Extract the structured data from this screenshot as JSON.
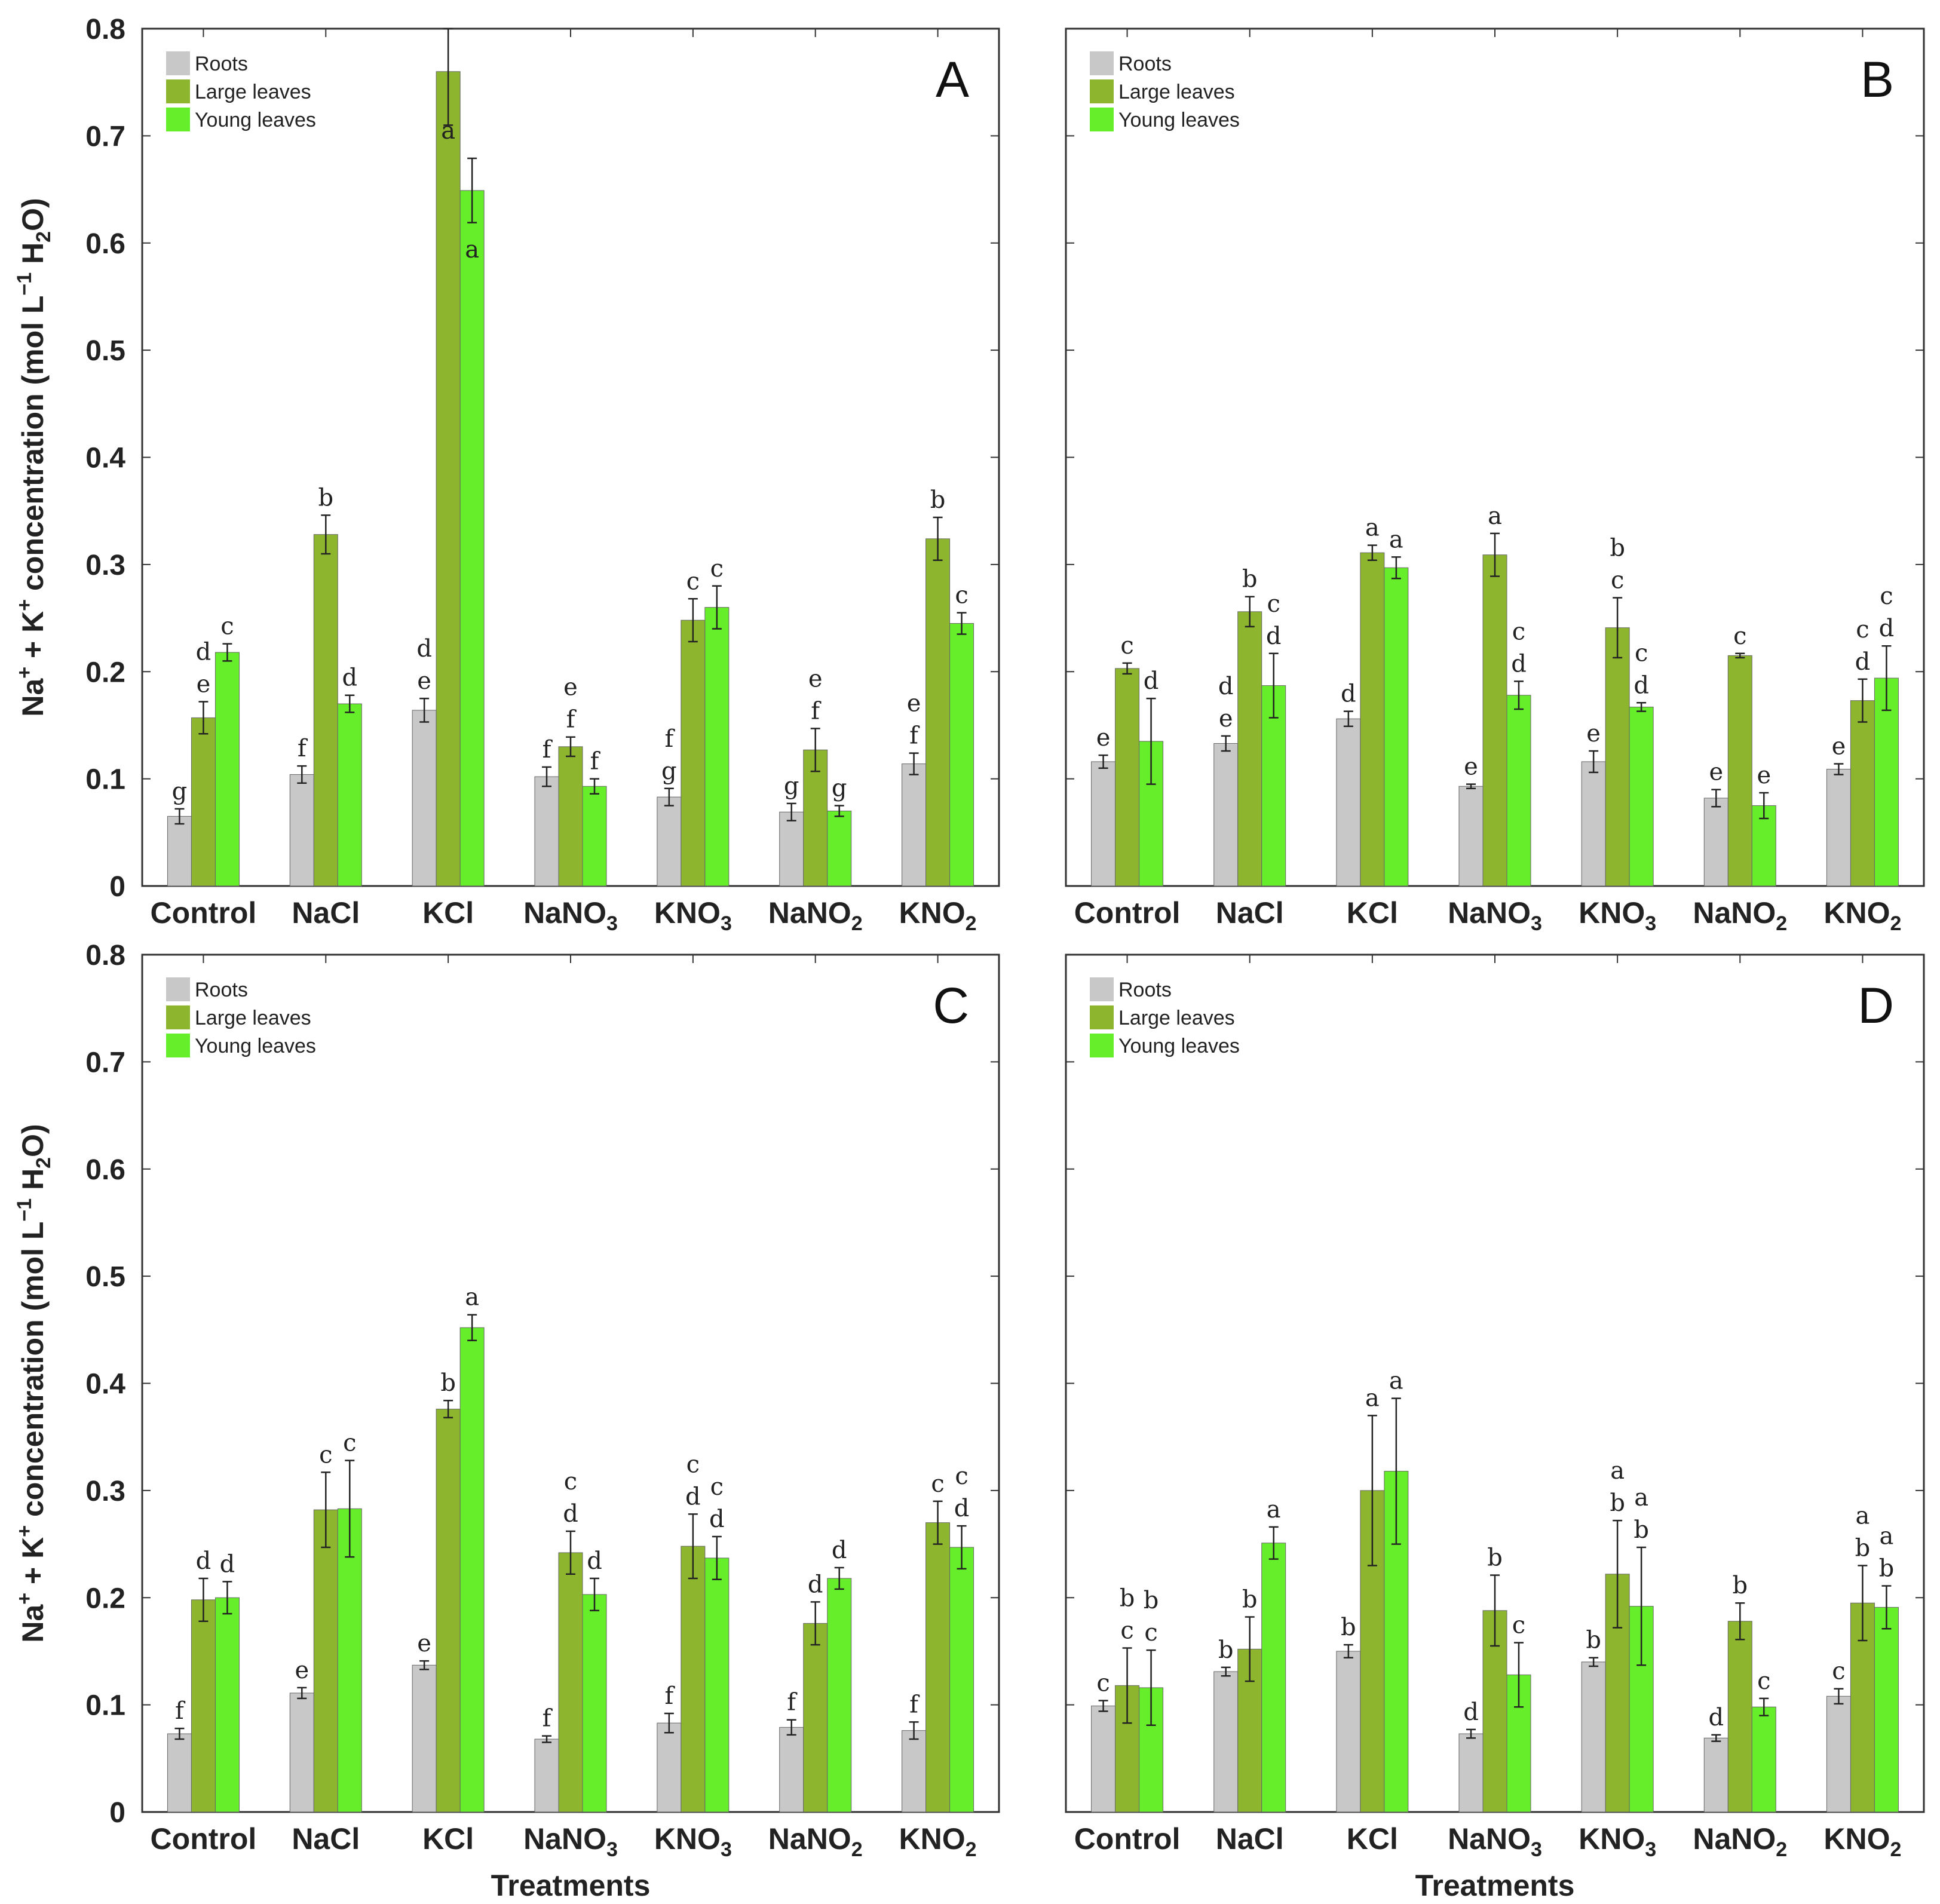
{
  "colors": {
    "roots": "#c8c8c8",
    "large_leaves": "#8db52e",
    "young_leaves": "#66ee2a",
    "frame": "#333333"
  },
  "y_ticks": [
    "0",
    "0.1",
    "0.2",
    "0.3",
    "0.4",
    "0.5",
    "0.6",
    "0.7",
    "0.8"
  ],
  "chart_data": [
    {
      "type": "bar",
      "panel": "A",
      "categories": [
        "Control",
        "NaCl",
        "KCl",
        "NaNO3",
        "KNO3",
        "NaNO2",
        "KNO2"
      ],
      "ylabel": "Na+ + K+ concentration (mol L-1 H2O)",
      "xlabel": "",
      "ylim": [
        0,
        0.8
      ],
      "legend": [
        "Roots",
        "Large leaves",
        "Young leaves"
      ],
      "series": [
        {
          "name": "Roots",
          "values": [
            0.065,
            0.104,
            0.164,
            0.102,
            0.083,
            0.069,
            0.114
          ],
          "errors": [
            0.007,
            0.008,
            0.011,
            0.009,
            0.008,
            0.008,
            0.01
          ],
          "letters": [
            "g",
            "f",
            "d e",
            "f",
            "f g",
            "g",
            "e f"
          ]
        },
        {
          "name": "Large leaves",
          "values": [
            0.157,
            0.328,
            0.76,
            0.13,
            0.248,
            0.127,
            0.324
          ],
          "errors": [
            0.015,
            0.018,
            0.05,
            0.009,
            0.02,
            0.02,
            0.02
          ],
          "letters": [
            "d e",
            "b",
            "a",
            "e f",
            "c",
            "e f",
            "b"
          ]
        },
        {
          "name": "Young leaves",
          "values": [
            0.218,
            0.17,
            0.649,
            0.093,
            0.26,
            0.07,
            0.245
          ],
          "errors": [
            0.008,
            0.008,
            0.03,
            0.007,
            0.02,
            0.005,
            0.01
          ],
          "letters": [
            "c",
            "d",
            "a",
            "f",
            "c",
            "g",
            "c"
          ]
        }
      ]
    },
    {
      "type": "bar",
      "panel": "B",
      "categories": [
        "Control",
        "NaCl",
        "KCl",
        "NaNO3",
        "KNO3",
        "NaNO2",
        "KNO2"
      ],
      "ylabel": "",
      "xlabel": "",
      "ylim": [
        0,
        0.8
      ],
      "legend": [
        "Roots",
        "Large leaves",
        "Young leaves"
      ],
      "series": [
        {
          "name": "Roots",
          "values": [
            0.116,
            0.133,
            0.156,
            0.093,
            0.116,
            0.082,
            0.109
          ],
          "errors": [
            0.006,
            0.007,
            0.007,
            0.002,
            0.01,
            0.008,
            0.005
          ],
          "letters": [
            "e",
            "d e",
            "d",
            "e",
            "e",
            "e",
            "e"
          ]
        },
        {
          "name": "Large leaves",
          "values": [
            0.203,
            0.256,
            0.311,
            0.309,
            0.241,
            0.215,
            0.173
          ],
          "errors": [
            0.005,
            0.014,
            0.007,
            0.02,
            0.028,
            0.002,
            0.02
          ],
          "letters": [
            "c",
            "b",
            "a",
            "a",
            "b c",
            "c",
            "c d"
          ]
        },
        {
          "name": "Young leaves",
          "values": [
            0.135,
            0.187,
            0.297,
            0.178,
            0.167,
            0.075,
            0.194
          ],
          "errors": [
            0.04,
            0.03,
            0.01,
            0.013,
            0.004,
            0.012,
            0.03
          ],
          "letters": [
            "d",
            "c d",
            "a",
            "c d",
            "c d",
            "e",
            "c d"
          ]
        }
      ]
    },
    {
      "type": "bar",
      "panel": "C",
      "categories": [
        "Control",
        "NaCl",
        "KCl",
        "NaNO3",
        "KNO3",
        "NaNO2",
        "KNO2"
      ],
      "ylabel": "Na+ + K+ concentration (mol L-1 H2O)",
      "xlabel": "Treatments",
      "ylim": [
        0,
        0.8
      ],
      "legend": [
        "Roots",
        "Large leaves",
        "Young leaves"
      ],
      "series": [
        {
          "name": "Roots",
          "values": [
            0.073,
            0.111,
            0.137,
            0.068,
            0.083,
            0.079,
            0.076
          ],
          "errors": [
            0.005,
            0.005,
            0.004,
            0.003,
            0.009,
            0.007,
            0.008
          ],
          "letters": [
            "f",
            "e",
            "e",
            "f",
            "f",
            "f",
            "f"
          ]
        },
        {
          "name": "Large leaves",
          "values": [
            0.198,
            0.282,
            0.376,
            0.242,
            0.248,
            0.176,
            0.27
          ],
          "errors": [
            0.02,
            0.035,
            0.008,
            0.02,
            0.03,
            0.02,
            0.02
          ],
          "letters": [
            "d",
            "c",
            "b",
            "c d",
            "c d",
            "d",
            "c"
          ]
        },
        {
          "name": "Young leaves",
          "values": [
            0.2,
            0.283,
            0.452,
            0.203,
            0.237,
            0.218,
            0.247
          ],
          "errors": [
            0.015,
            0.045,
            0.012,
            0.015,
            0.02,
            0.01,
            0.02
          ],
          "letters": [
            "d",
            "c",
            "a",
            "d",
            "c d",
            "d",
            "c d"
          ]
        }
      ]
    },
    {
      "type": "bar",
      "panel": "D",
      "categories": [
        "Control",
        "NaCl",
        "KCl",
        "NaNO3",
        "KNO3",
        "NaNO2",
        "KNO2"
      ],
      "ylabel": "",
      "xlabel": "Treatments",
      "ylim": [
        0,
        0.8
      ],
      "legend": [
        "Roots",
        "Large leaves",
        "Young leaves"
      ],
      "series": [
        {
          "name": "Roots",
          "values": [
            0.099,
            0.131,
            0.15,
            0.073,
            0.14,
            0.069,
            0.108
          ],
          "errors": [
            0.005,
            0.004,
            0.006,
            0.004,
            0.004,
            0.003,
            0.007
          ],
          "letters": [
            "c",
            "b",
            "b",
            "d",
            "b",
            "d",
            "c"
          ]
        },
        {
          "name": "Large leaves",
          "values": [
            0.118,
            0.152,
            0.3,
            0.188,
            0.222,
            0.178,
            0.195
          ],
          "errors": [
            0.035,
            0.03,
            0.07,
            0.033,
            0.05,
            0.017,
            0.035
          ],
          "letters": [
            "b c",
            "b",
            "a",
            "b",
            "a b",
            "b",
            "a b"
          ]
        },
        {
          "name": "Young leaves",
          "values": [
            0.116,
            0.251,
            0.318,
            0.128,
            0.192,
            0.098,
            0.191
          ],
          "errors": [
            0.035,
            0.015,
            0.068,
            0.03,
            0.055,
            0.008,
            0.02
          ],
          "letters": [
            "b c",
            "a",
            "a",
            "c",
            "a b",
            "c",
            "a b"
          ]
        }
      ]
    }
  ]
}
